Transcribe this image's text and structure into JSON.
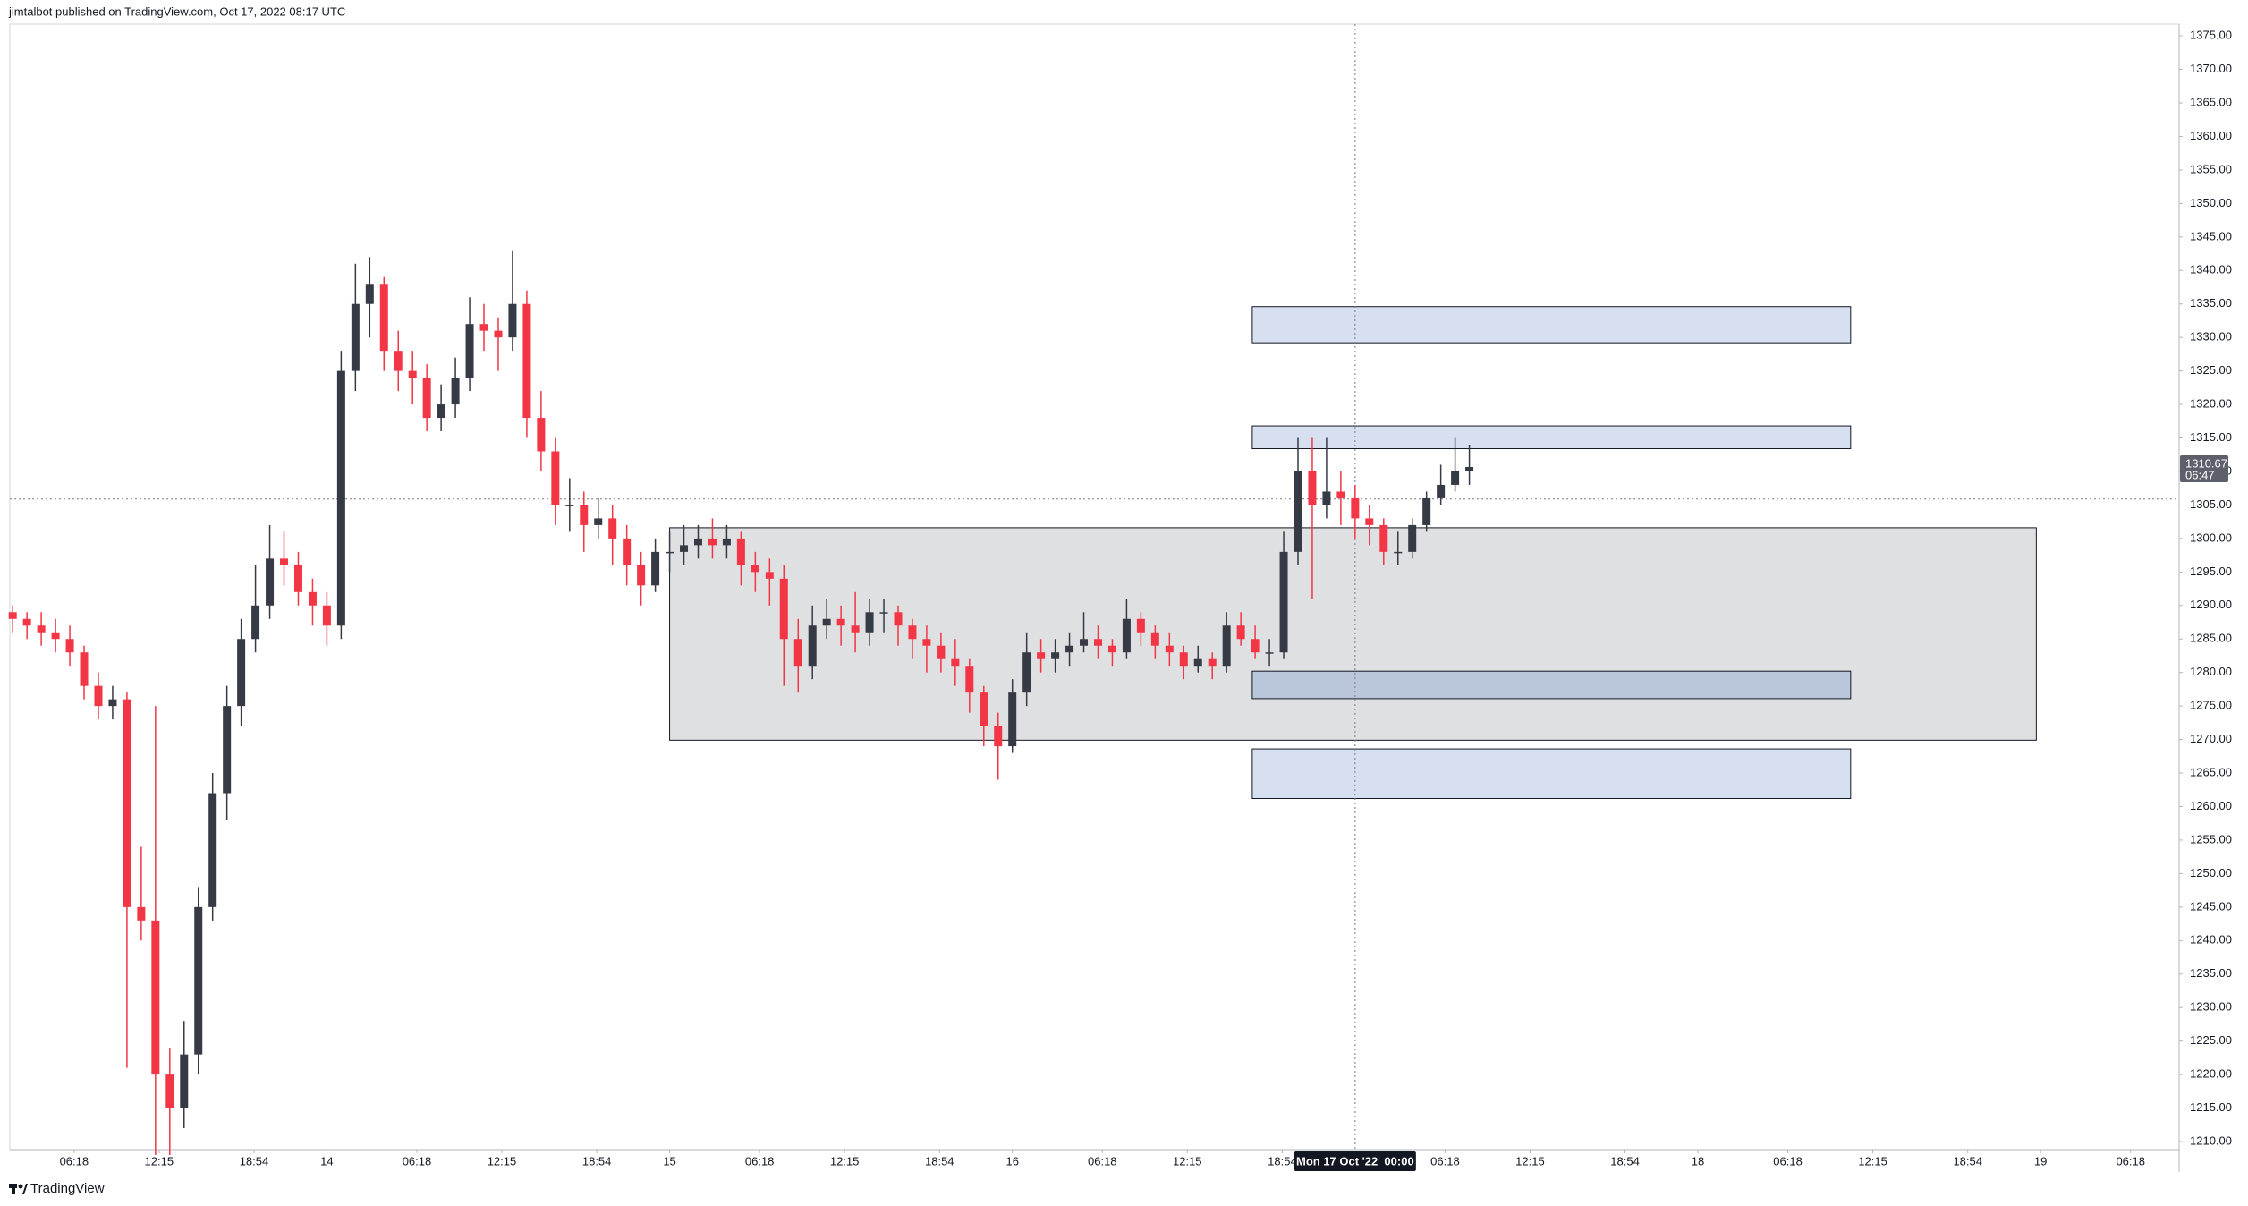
{
  "header": "jimtalbot published on TradingView.com, Oct 17, 2022 08:17 UTC",
  "footer": "TradingView",
  "chart_data": {
    "type": "candlestick",
    "xlim": [
      1.8,
      153.7
    ],
    "ylim": [
      1208.8,
      1376.75
    ],
    "up_color": "#363a45",
    "down_color": "#f23645",
    "yticks": [
      {
        "value": 1375,
        "label": "1375.00"
      },
      {
        "value": 1370,
        "label": "1370.00"
      },
      {
        "value": 1365,
        "label": "1365.00"
      },
      {
        "value": 1360,
        "label": "1360.00"
      },
      {
        "value": 1355,
        "label": "1355.00"
      },
      {
        "value": 1350,
        "label": "1350.00"
      },
      {
        "value": 1345,
        "label": "1345.00"
      },
      {
        "value": 1340,
        "label": "1340.00"
      },
      {
        "value": 1335,
        "label": "1335.00"
      },
      {
        "value": 1330,
        "label": "1330.00"
      },
      {
        "value": 1325,
        "label": "1325.00"
      },
      {
        "value": 1320,
        "label": "1320.00"
      },
      {
        "value": 1315,
        "label": "1315.00"
      },
      {
        "value": 1310,
        "label": "1310.00"
      },
      {
        "value": 1305,
        "label": "1305.00"
      },
      {
        "value": 1300,
        "label": "1300.00"
      },
      {
        "value": 1295,
        "label": "1295.00"
      },
      {
        "value": 1290,
        "label": "1290.00"
      },
      {
        "value": 1285,
        "label": "1285.00"
      },
      {
        "value": 1280,
        "label": "1280.00"
      },
      {
        "value": 1275,
        "label": "1275.00"
      },
      {
        "value": 1270,
        "label": "1270.00"
      },
      {
        "value": 1265,
        "label": "1265.00"
      },
      {
        "value": 1260,
        "label": "1260.00"
      },
      {
        "value": 1255,
        "label": "1255.00"
      },
      {
        "value": 1250,
        "label": "1250.00"
      },
      {
        "value": 1245,
        "label": "1245.00"
      },
      {
        "value": 1240,
        "label": "1240.00"
      },
      {
        "value": 1235,
        "label": "1235.00"
      },
      {
        "value": 1230,
        "label": "1230.00"
      },
      {
        "value": 1225,
        "label": "1225.00"
      },
      {
        "value": 1220,
        "label": "1220.00"
      },
      {
        "value": 1215,
        "label": "1215.00"
      },
      {
        "value": 1210,
        "label": "1210.00"
      }
    ],
    "xticks": [
      {
        "value": 6.3,
        "label": "06:18"
      },
      {
        "value": 12.25,
        "label": "12:15"
      },
      {
        "value": 18.9,
        "label": "18:54"
      },
      {
        "value": 24,
        "label": "14"
      },
      {
        "value": 30.3,
        "label": "06:18"
      },
      {
        "value": 36.25,
        "label": "12:15"
      },
      {
        "value": 42.9,
        "label": "18:54"
      },
      {
        "value": 48,
        "label": "15"
      },
      {
        "value": 54.3,
        "label": "06:18"
      },
      {
        "value": 60.25,
        "label": "12:15"
      },
      {
        "value": 66.9,
        "label": "18:54"
      },
      {
        "value": 72,
        "label": "16"
      },
      {
        "value": 78.3,
        "label": "06:18"
      },
      {
        "value": 84.25,
        "label": "12:15"
      },
      {
        "value": 90.9,
        "label": "18:54"
      },
      {
        "value": 102.3,
        "label": "06:18"
      },
      {
        "value": 108.25,
        "label": "12:15"
      },
      {
        "value": 114.9,
        "label": "18:54"
      },
      {
        "value": 120,
        "label": "18"
      },
      {
        "value": 126.3,
        "label": "06:18"
      },
      {
        "value": 132.25,
        "label": "12:15"
      },
      {
        "value": 138.9,
        "label": "18:54"
      },
      {
        "value": 144,
        "label": "19"
      },
      {
        "value": 150.3,
        "label": "06:18"
      }
    ],
    "x": [
      2,
      3,
      4,
      5,
      6,
      7,
      8,
      9,
      10,
      11,
      12,
      13,
      14,
      15,
      16,
      17,
      18,
      19,
      20,
      21,
      22,
      23,
      24,
      25,
      26,
      27,
      28,
      29,
      30,
      31,
      32,
      33,
      34,
      35,
      36,
      37,
      38,
      39,
      40,
      41,
      42,
      43,
      44,
      45,
      46,
      47,
      48,
      49,
      50,
      51,
      52,
      53,
      54,
      55,
      56,
      57,
      58,
      59,
      60,
      61,
      62,
      63,
      64,
      65,
      66,
      67,
      68,
      69,
      70,
      71,
      72,
      73,
      74,
      75,
      76,
      77,
      78,
      79,
      80,
      81,
      82,
      83,
      84,
      85,
      86,
      87,
      88,
      89,
      90,
      91,
      92,
      93,
      94,
      95,
      96,
      97,
      98,
      99,
      100,
      101,
      102,
      103,
      104
    ],
    "candles": [
      [
        1289,
        1290,
        1286,
        1288
      ],
      [
        1288,
        1289,
        1285,
        1287
      ],
      [
        1287,
        1289,
        1284,
        1286
      ],
      [
        1286,
        1288,
        1283,
        1285
      ],
      [
        1285,
        1287,
        1281,
        1283
      ],
      [
        1283,
        1284,
        1276,
        1278
      ],
      [
        1278,
        1280,
        1273,
        1275
      ],
      [
        1275,
        1278,
        1273,
        1276
      ],
      [
        1276,
        1277,
        1221,
        1245
      ],
      [
        1245,
        1254,
        1240,
        1243
      ],
      [
        1243,
        1275,
        1208,
        1220
      ],
      [
        1220,
        1224,
        1208,
        1215
      ],
      [
        1215,
        1228,
        1212,
        1223
      ],
      [
        1223,
        1248,
        1220,
        1245
      ],
      [
        1245,
        1265,
        1243,
        1262
      ],
      [
        1262,
        1278,
        1258,
        1275
      ],
      [
        1275,
        1288,
        1272,
        1285
      ],
      [
        1285,
        1296,
        1283,
        1290
      ],
      [
        1290,
        1302,
        1288,
        1297
      ],
      [
        1297,
        1301,
        1293,
        1296
      ],
      [
        1296,
        1298,
        1290,
        1292
      ],
      [
        1292,
        1294,
        1287,
        1290
      ],
      [
        1290,
        1292,
        1284,
        1287
      ],
      [
        1287,
        1328,
        1285,
        1325
      ],
      [
        1325,
        1341,
        1322,
        1335
      ],
      [
        1335,
        1342,
        1330,
        1338
      ],
      [
        1338,
        1339,
        1325,
        1328
      ],
      [
        1328,
        1331,
        1322,
        1325
      ],
      [
        1325,
        1328,
        1320,
        1324
      ],
      [
        1324,
        1326,
        1316,
        1318
      ],
      [
        1318,
        1323,
        1316,
        1320
      ],
      [
        1320,
        1327,
        1318,
        1324
      ],
      [
        1324,
        1336,
        1322,
        1332
      ],
      [
        1332,
        1335,
        1328,
        1331
      ],
      [
        1331,
        1333,
        1325,
        1330
      ],
      [
        1330,
        1343,
        1328,
        1335
      ],
      [
        1335,
        1337,
        1315,
        1318
      ],
      [
        1318,
        1322,
        1310,
        1313
      ],
      [
        1313,
        1315,
        1302,
        1305
      ],
      [
        1305,
        1309,
        1301,
        1305
      ],
      [
        1305,
        1307,
        1298,
        1302
      ],
      [
        1302,
        1306,
        1300,
        1303
      ],
      [
        1303,
        1305,
        1296,
        1300
      ],
      [
        1300,
        1302,
        1293,
        1296
      ],
      [
        1296,
        1298,
        1290,
        1293
      ],
      [
        1293,
        1300,
        1292,
        1298
      ],
      [
        1298,
        1301,
        1295,
        1298
      ],
      [
        1298,
        1302,
        1296,
        1299
      ],
      [
        1299,
        1302,
        1297,
        1300
      ],
      [
        1300,
        1303,
        1297,
        1299
      ],
      [
        1299,
        1302,
        1297,
        1300
      ],
      [
        1300,
        1301,
        1293,
        1296
      ],
      [
        1296,
        1298,
        1292,
        1295
      ],
      [
        1295,
        1297,
        1290,
        1294
      ],
      [
        1294,
        1296,
        1278,
        1285
      ],
      [
        1285,
        1288,
        1277,
        1281
      ],
      [
        1281,
        1290,
        1279,
        1287
      ],
      [
        1287,
        1291,
        1285,
        1288
      ],
      [
        1288,
        1290,
        1284,
        1287
      ],
      [
        1287,
        1292,
        1283,
        1286
      ],
      [
        1286,
        1291,
        1284,
        1289
      ],
      [
        1289,
        1291,
        1286,
        1289
      ],
      [
        1289,
        1290,
        1284,
        1287
      ],
      [
        1287,
        1288,
        1282,
        1285
      ],
      [
        1285,
        1287,
        1280,
        1284
      ],
      [
        1284,
        1286,
        1280,
        1282
      ],
      [
        1282,
        1285,
        1278,
        1281
      ],
      [
        1281,
        1282,
        1274,
        1277
      ],
      [
        1277,
        1278,
        1269,
        1272
      ],
      [
        1272,
        1274,
        1264,
        1269
      ],
      [
        1269,
        1279,
        1268,
        1277
      ],
      [
        1277,
        1286,
        1275,
        1283
      ],
      [
        1283,
        1285,
        1280,
        1282
      ],
      [
        1282,
        1285,
        1280,
        1283
      ],
      [
        1283,
        1286,
        1281,
        1284
      ],
      [
        1284,
        1289,
        1283,
        1285
      ],
      [
        1285,
        1287,
        1282,
        1284
      ],
      [
        1284,
        1285,
        1281,
        1283
      ],
      [
        1283,
        1291,
        1282,
        1288
      ],
      [
        1288,
        1289,
        1284,
        1286
      ],
      [
        1286,
        1287,
        1282,
        1284
      ],
      [
        1284,
        1286,
        1281,
        1283
      ],
      [
        1283,
        1284,
        1279,
        1281
      ],
      [
        1281,
        1284,
        1280,
        1282
      ],
      [
        1282,
        1283,
        1279,
        1281
      ],
      [
        1281,
        1289,
        1280,
        1287
      ],
      [
        1287,
        1289,
        1284,
        1285
      ],
      [
        1285,
        1287,
        1282,
        1283
      ],
      [
        1283,
        1285,
        1281,
        1283
      ],
      [
        1283,
        1301,
        1282,
        1298
      ],
      [
        1298,
        1315,
        1296,
        1310
      ],
      [
        1310,
        1315,
        1291,
        1305
      ],
      [
        1305,
        1315,
        1303,
        1307
      ],
      [
        1307,
        1310,
        1302,
        1306
      ],
      [
        1306,
        1308,
        1300,
        1303
      ],
      [
        1303,
        1305,
        1299,
        1302
      ],
      [
        1302,
        1303,
        1296,
        1298
      ],
      [
        1298,
        1301,
        1296,
        1298
      ],
      [
        1298,
        1303,
        1297,
        1302
      ],
      [
        1302,
        1307,
        1301,
        1306
      ],
      [
        1306,
        1311,
        1305,
        1308
      ],
      [
        1308,
        1315,
        1307,
        1310
      ],
      [
        1310,
        1314,
        1308,
        1310.67
      ]
    ],
    "zones": [
      {
        "x": [
          48,
          143.7
        ],
        "y": [
          1269.9,
          1301.6
        ],
        "color": "#dfe0e2"
      },
      {
        "x": [
          88.8,
          130.7
        ],
        "y": [
          1329.2,
          1334.6
        ],
        "color": "#d6e0f0"
      },
      {
        "x": [
          88.8,
          130.7
        ],
        "y": [
          1313.4,
          1316.8
        ],
        "color": "#d6e0f0"
      },
      {
        "x": [
          88.8,
          130.7
        ],
        "y": [
          1276.1,
          1280.2
        ],
        "color": "#b9c6dc"
      },
      {
        "x": [
          88.8,
          130.7
        ],
        "y": [
          1261.2,
          1268.6
        ],
        "color": "#d6e0f0"
      }
    ],
    "crosshair": {
      "x": 96,
      "y": 1305.9,
      "label": "Mon 17 Oct '22  00:00"
    },
    "countdown": "06:47"
  }
}
